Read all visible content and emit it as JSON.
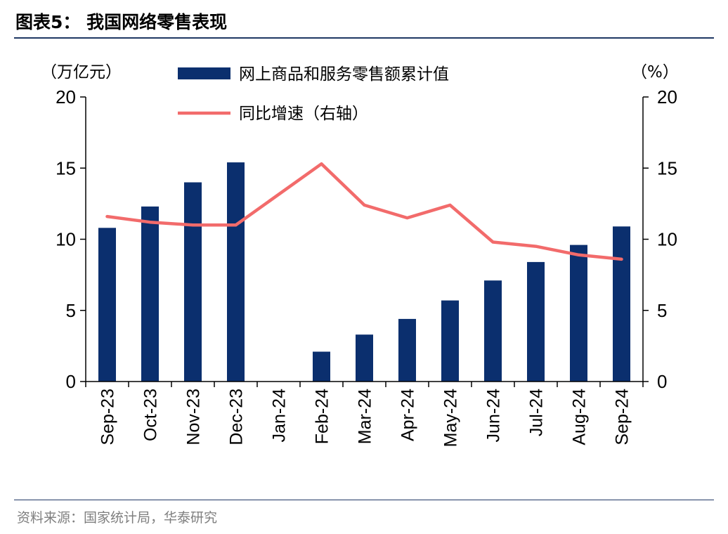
{
  "header": {
    "title": "图表5：  我国网络零售表现"
  },
  "footer": {
    "source": "资料来源：国家统计局，华泰研究"
  },
  "chart_data": {
    "type": "bar",
    "categories": [
      "Sep-23",
      "Oct-23",
      "Nov-23",
      "Dec-23",
      "Jan-24",
      "Feb-24",
      "Mar-24",
      "Apr-24",
      "May-24",
      "Jun-24",
      "Jul-24",
      "Aug-24",
      "Sep-24"
    ],
    "series": [
      {
        "name": "网上商品和服务零售额累计值",
        "type": "bar",
        "axis": "left",
        "color": "#0b2f6e",
        "values": [
          10.8,
          12.3,
          14.0,
          15.4,
          null,
          2.1,
          3.3,
          4.4,
          5.7,
          7.1,
          8.4,
          9.6,
          10.9
        ]
      },
      {
        "name": "同比增速（右轴）",
        "type": "line",
        "axis": "right",
        "color": "#f26b6b",
        "values": [
          11.6,
          11.2,
          11.0,
          11.0,
          null,
          15.3,
          12.4,
          11.5,
          12.4,
          9.8,
          9.5,
          8.9,
          8.6
        ]
      }
    ],
    "left_axis": {
      "label": "（万亿元）",
      "ylim": [
        0,
        20
      ],
      "ticks": [
        0,
        5,
        10,
        15,
        20
      ]
    },
    "right_axis": {
      "label": "（%）",
      "ylim": [
        0,
        20
      ],
      "ticks": [
        0,
        5,
        10,
        15,
        20
      ]
    },
    "legend_position": "top-center",
    "grid": false
  }
}
